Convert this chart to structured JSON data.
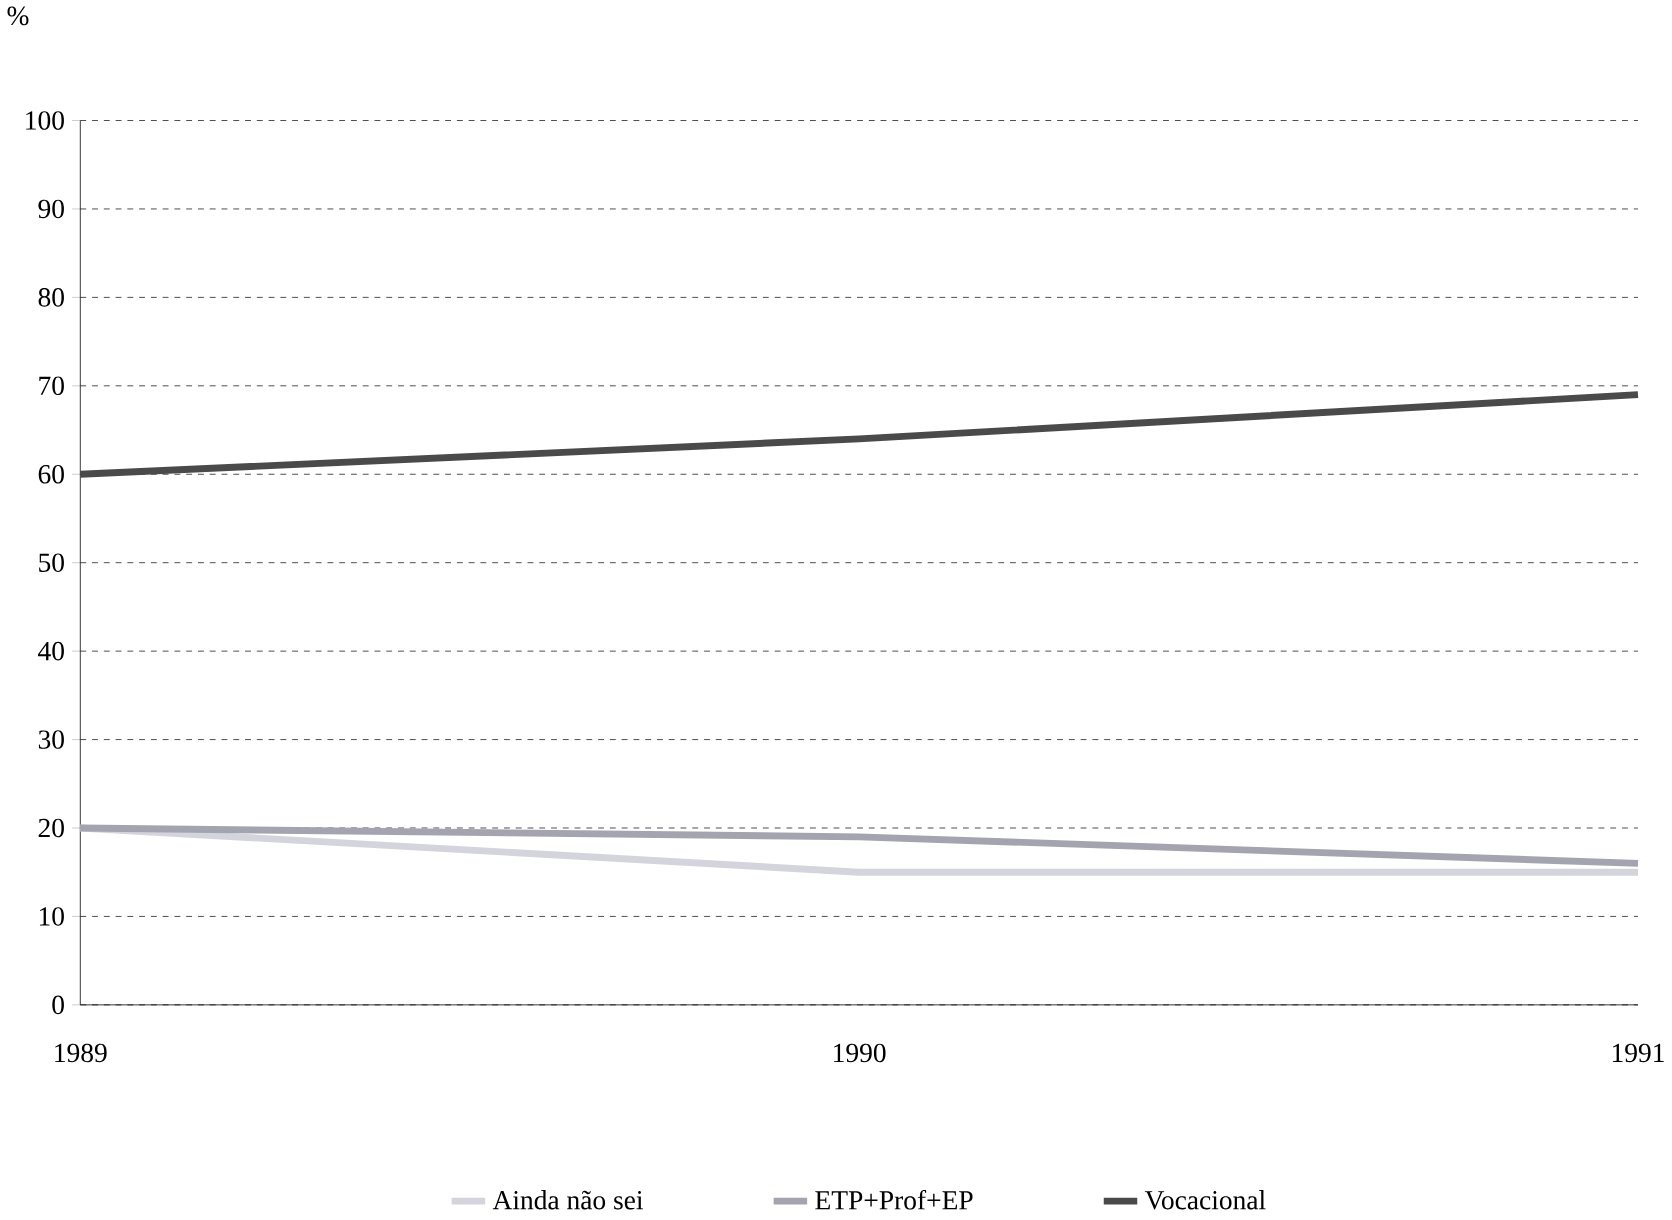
{
  "chart_data": {
    "type": "line",
    "ylabel": "%",
    "x": [
      1989,
      1990,
      1991
    ],
    "series": [
      {
        "name": "Ainda não sei",
        "color": "#d4d4dc",
        "values": [
          20,
          15,
          15
        ]
      },
      {
        "name": "ETP+Prof+EP",
        "color": "#a4a4b0",
        "values": [
          20,
          19,
          16
        ]
      },
      {
        "name": "Vocacional",
        "color": "#4a4a4a",
        "values": [
          60,
          64,
          69
        ]
      }
    ],
    "xlim": [
      1989,
      1991
    ],
    "xticks": [
      1989,
      1990,
      1991
    ],
    "ylim": [
      0,
      100
    ],
    "yticks": [
      0,
      10,
      20,
      30,
      40,
      50,
      60,
      70,
      80,
      90,
      100
    ],
    "grid": "y",
    "legend": "bottom",
    "marker": "none",
    "line_style": "solid"
  }
}
